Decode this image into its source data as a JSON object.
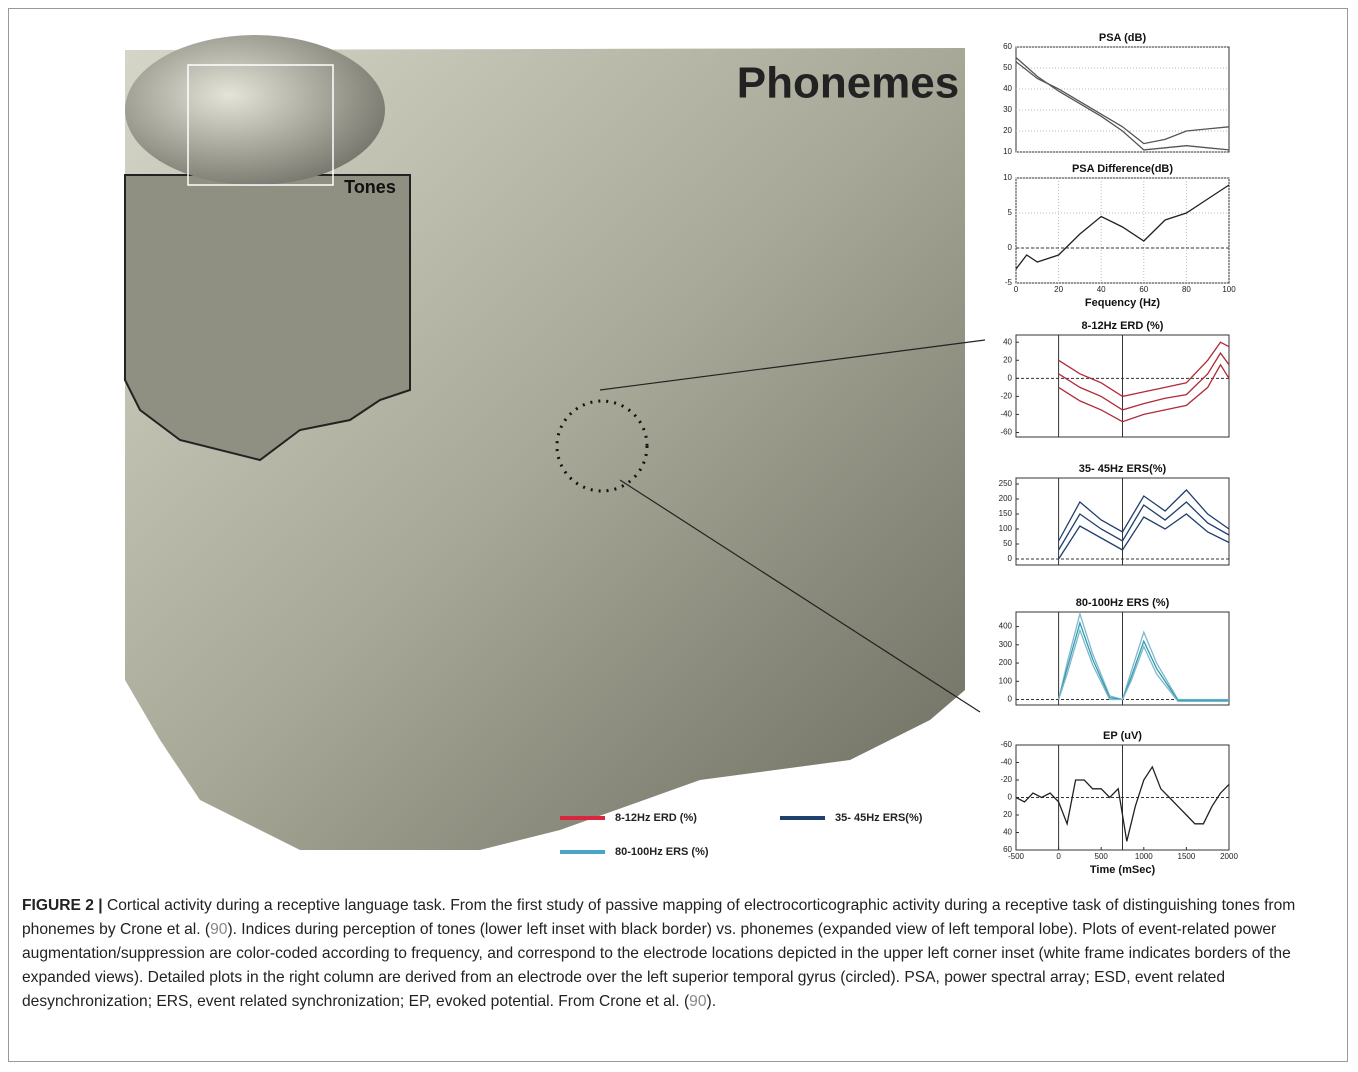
{
  "figure": {
    "title": "Phonemes",
    "inset_label": "Tones",
    "legend": [
      {
        "name": "8-12Hz  ERD (%)",
        "color": "#d7263d"
      },
      {
        "name": "35- 45Hz ERS(%)",
        "color": "#1f3f6e"
      },
      {
        "name": "80-100Hz ERS (%)",
        "color": "#4aa3c8"
      }
    ]
  },
  "chart_data": [
    {
      "type": "line",
      "title": "PSA (dB)",
      "x": [
        0,
        10,
        20,
        30,
        40,
        50,
        60,
        70,
        80,
        90,
        100
      ],
      "xlim": [
        0,
        100
      ],
      "ylim": [
        10,
        60
      ],
      "yticks": [
        10,
        20,
        30,
        40,
        50,
        60
      ],
      "grid": true,
      "series": [
        {
          "color": "#555555",
          "values": [
            53,
            45,
            40,
            34,
            28,
            22,
            14,
            16,
            20,
            21,
            22
          ]
        },
        {
          "color": "#555555",
          "values": [
            55,
            46,
            39,
            33,
            27,
            20,
            11,
            12,
            13,
            12,
            11
          ]
        }
      ]
    },
    {
      "type": "line",
      "title": "PSA Difference(dB)",
      "x_label": "Fequency (Hz)",
      "x": [
        0,
        5,
        10,
        20,
        30,
        40,
        50,
        60,
        70,
        80,
        90,
        100
      ],
      "xlim": [
        0,
        100
      ],
      "xticks": [
        0,
        20,
        40,
        60,
        80,
        100
      ],
      "ylim": [
        -5,
        10
      ],
      "yticks": [
        -5,
        0,
        5,
        10
      ],
      "grid": true,
      "zero_line": true,
      "series": [
        {
          "color": "#222222",
          "values": [
            -3,
            -1,
            -2,
            -1,
            2,
            4.5,
            3,
            1,
            4,
            5,
            7,
            9
          ]
        }
      ]
    },
    {
      "type": "line",
      "title": "8-12Hz  ERD (%)",
      "x": [
        0,
        250,
        500,
        750,
        1000,
        1250,
        1500,
        1750,
        1900,
        2000
      ],
      "xlim": [
        -500,
        2000
      ],
      "ylim": [
        -65,
        48
      ],
      "yticks": [
        40,
        20,
        0,
        -20,
        -40,
        -60
      ],
      "zero_line": true,
      "vlines": [
        0,
        750
      ],
      "series": [
        {
          "color": "#b02a37",
          "values": [
            20,
            5,
            -5,
            -20,
            -15,
            -10,
            -5,
            20,
            40,
            35
          ]
        },
        {
          "color": "#b02a37",
          "values": [
            5,
            -10,
            -20,
            -35,
            -28,
            -22,
            -18,
            5,
            28,
            15
          ]
        },
        {
          "color": "#b02a37",
          "values": [
            -10,
            -25,
            -35,
            -48,
            -40,
            -35,
            -30,
            -10,
            15,
            0
          ]
        }
      ]
    },
    {
      "type": "line",
      "title": "35- 45Hz ERS(%)",
      "x": [
        0,
        250,
        500,
        750,
        1000,
        1250,
        1500,
        1750,
        2000
      ],
      "xlim": [
        -500,
        2000
      ],
      "ylim": [
        -20,
        270
      ],
      "yticks": [
        0,
        50,
        100,
        150,
        200,
        250
      ],
      "zero_line": true,
      "vlines": [
        0,
        750
      ],
      "series": [
        {
          "color": "#1f3f6e",
          "values": [
            60,
            190,
            130,
            90,
            210,
            160,
            230,
            150,
            100
          ]
        },
        {
          "color": "#1f3f6e",
          "values": [
            30,
            150,
            100,
            60,
            180,
            130,
            190,
            120,
            80
          ]
        },
        {
          "color": "#1f3f6e",
          "values": [
            0,
            110,
            70,
            30,
            140,
            100,
            150,
            90,
            55
          ]
        }
      ]
    },
    {
      "type": "line",
      "title": "80-100Hz ERS (%)",
      "x": [
        0,
        100,
        250,
        400,
        600,
        750,
        850,
        1000,
        1150,
        1400,
        2000
      ],
      "xlim": [
        -500,
        2000
      ],
      "ylim": [
        -30,
        480
      ],
      "yticks": [
        0,
        100,
        200,
        300,
        400
      ],
      "zero_line": true,
      "vlines": [
        0,
        750
      ],
      "series": [
        {
          "color": "#7fb8c8",
          "values": [
            0,
            200,
            470,
            250,
            20,
            0,
            150,
            370,
            200,
            0,
            0
          ]
        },
        {
          "color": "#2e9bb5",
          "values": [
            0,
            170,
            420,
            220,
            10,
            0,
            120,
            320,
            170,
            -5,
            -5
          ]
        },
        {
          "color": "#7fb8c8",
          "values": [
            0,
            140,
            380,
            190,
            0,
            0,
            100,
            290,
            140,
            -10,
            -10
          ]
        }
      ]
    },
    {
      "type": "line",
      "title": "EP (uV)",
      "x_label": "Time (mSec)",
      "x": [
        -500,
        -400,
        -300,
        -200,
        -100,
        0,
        100,
        200,
        300,
        400,
        500,
        600,
        700,
        800,
        900,
        1000,
        1100,
        1200,
        1300,
        1400,
        1500,
        1600,
        1700,
        1800,
        1900,
        2000
      ],
      "xlim": [
        -500,
        2000
      ],
      "xticks": [
        -500,
        0,
        500,
        1000,
        1500,
        2000
      ],
      "ylim": [
        60,
        -60
      ],
      "yticks": [
        -60,
        -40,
        -20,
        0,
        20,
        40,
        60
      ],
      "zero_line": true,
      "vlines": [
        0,
        750
      ],
      "series": [
        {
          "color": "#222222",
          "values": [
            0,
            5,
            -5,
            0,
            -5,
            5,
            30,
            -20,
            -20,
            -10,
            -10,
            0,
            -10,
            50,
            10,
            -20,
            -35,
            -10,
            0,
            10,
            20,
            30,
            30,
            10,
            -5,
            -15
          ]
        }
      ]
    }
  ],
  "caption": {
    "label": "FIGURE 2 |",
    "parts": [
      "Cortical activity during a receptive language task. From the first study of passive mapping of electrocorticographic activity during a receptive task of distinguishing tones from phonemes by Crone et al. (",
      "90",
      "). Indices during perception of tones (lower left inset with black border) vs. phonemes (expanded view of left temporal lobe). Plots of event-related power augmentation/suppression are color-coded according to frequency, and correspond to the electrode locations depicted in the upper left corner inset (white frame indicates borders of the expanded views). Detailed plots in the right column are derived from an electrode over the left superior temporal gyrus (circled). PSA, power spectral array; ESD, event related desynchronization; ERS, event related synchronization; EP, evoked potential. From Crone et al. (",
      "90",
      ")."
    ]
  }
}
